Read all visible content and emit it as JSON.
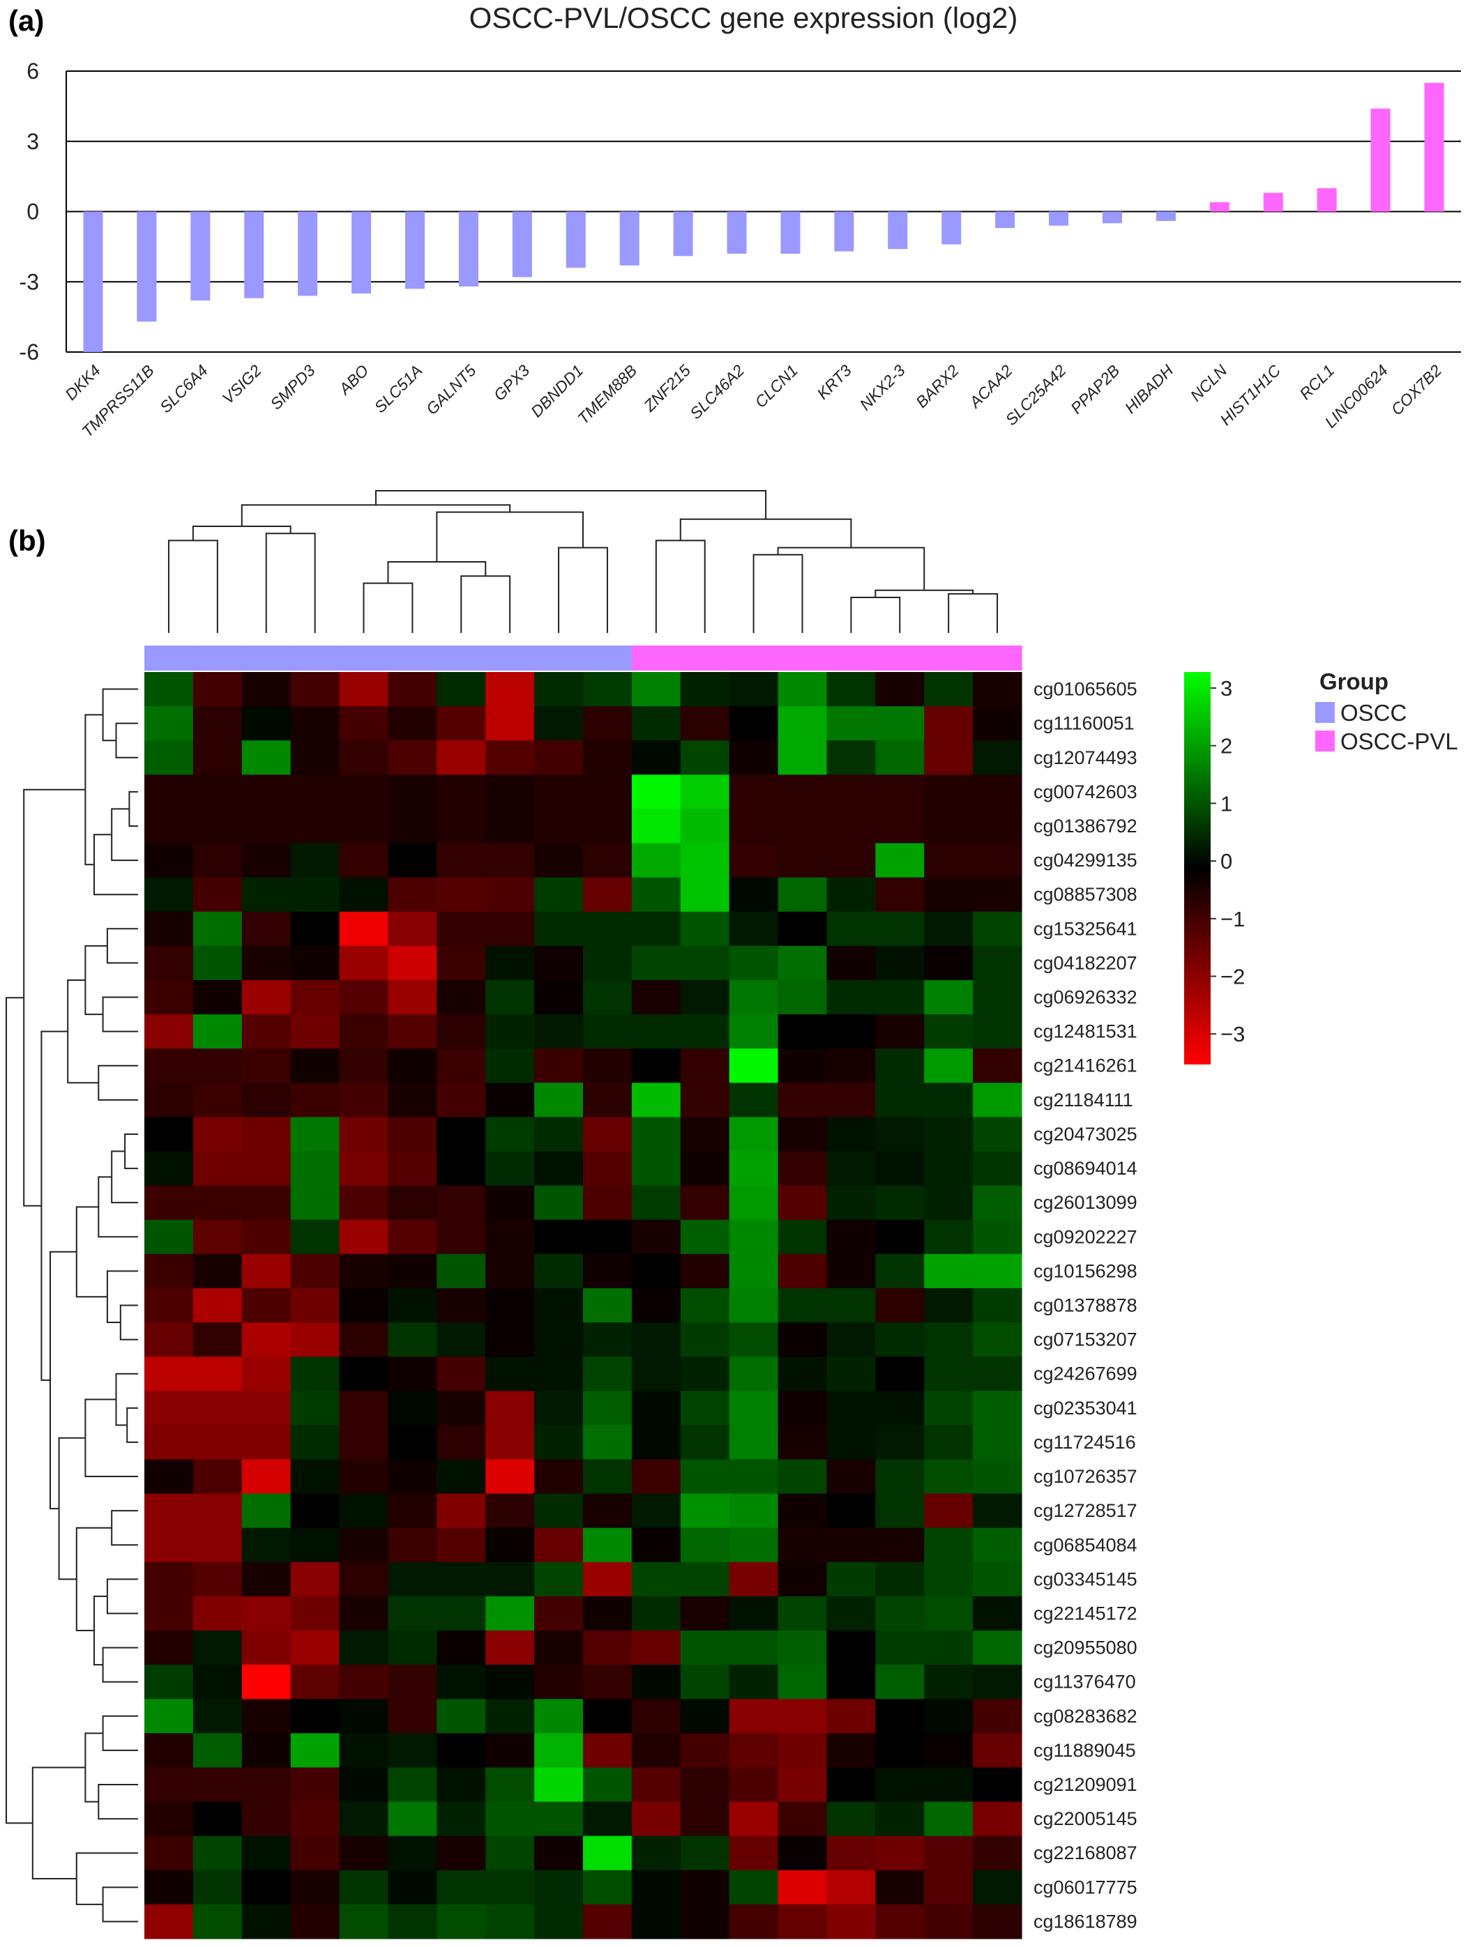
{
  "panels": {
    "a_label": "(a)",
    "b_label": "(b)"
  },
  "colors": {
    "decrease": "#9999ff",
    "increase": "#ff66ff",
    "heat_low": "#ff0000",
    "heat_mid": "#000000",
    "heat_high": "#00ff00"
  },
  "chart_data": [
    {
      "type": "bar",
      "title": "OSCC-PVL/OSCC gene expression (log2)",
      "ylim": [
        -6,
        6
      ],
      "yticks": [
        -6,
        -3,
        0,
        3,
        6
      ],
      "grid": true,
      "categories": [
        "DKK4",
        "TMPRSS11B",
        "SLC6A4",
        "VSIG2",
        "SMPD3",
        "ABO",
        "SLC51A",
        "GALNT5",
        "GPX3",
        "DBNDD1",
        "TMEM88B",
        "ZNF215",
        "SLC46A2",
        "CLCN1",
        "KRT3",
        "NKX2-3",
        "BARX2",
        "ACAA2",
        "SLC25A42",
        "PPAP2B",
        "HIBADH",
        "NCLN",
        "HIST1H1C",
        "RCL1",
        "LINC00624",
        "COX7B2"
      ],
      "values": [
        -6.0,
        -4.7,
        -3.8,
        -3.7,
        -3.6,
        -3.5,
        -3.3,
        -3.2,
        -2.8,
        -2.4,
        -2.3,
        -1.9,
        -1.8,
        -1.8,
        -1.7,
        -1.6,
        -1.4,
        -0.7,
        -0.6,
        -0.5,
        -0.4,
        0.4,
        0.8,
        1.0,
        4.4,
        5.5
      ]
    },
    {
      "type": "heatmap",
      "legend": {
        "title": "Group",
        "entries": [
          "OSCC",
          "OSCC-PVL"
        ]
      },
      "groups": [
        "OSCC",
        "OSCC",
        "OSCC",
        "OSCC",
        "OSCC",
        "OSCC",
        "OSCC",
        "OSCC",
        "OSCC",
        "OSCC",
        "OSCC-PVL",
        "OSCC-PVL",
        "OSCC-PVL",
        "OSCC-PVL",
        "OSCC-PVL",
        "OSCC-PVL",
        "OSCC-PVL",
        "OSCC-PVL"
      ],
      "colorbar": {
        "range": [
          -3,
          3
        ],
        "ticks": [
          "3",
          "2",
          "1",
          "0",
          "−1",
          "−2",
          "−3"
        ]
      },
      "rows": [
        "cg01065605",
        "cg11160051",
        "cg12074493",
        "cg00742603",
        "cg01386792",
        "cg04299135",
        "cg08857308",
        "cg15325641",
        "cg04182207",
        "cg06926332",
        "cg12481531",
        "cg21416261",
        "cg21184111",
        "cg20473025",
        "cg08694014",
        "cg26013099",
        "cg09202227",
        "cg10156298",
        "cg01378878",
        "cg07153207",
        "cg24267699",
        "cg02353041",
        "cg11724516",
        "cg10726357",
        "cg12728517",
        "cg06854084",
        "cg03345145",
        "cg22145172",
        "cg20955080",
        "cg11376470",
        "cg08283682",
        "cg11889045",
        "cg21209091",
        "cg22005145",
        "cg22168087",
        "cg06017775",
        "cg18618789"
      ],
      "values": [
        [
          1.0,
          -0.8,
          -0.3,
          -0.8,
          -1.8,
          -0.8,
          0.5,
          -2.2,
          0.5,
          0.7,
          1.5,
          0.4,
          0.3,
          1.6,
          0.6,
          -0.3,
          0.6,
          -0.3
        ],
        [
          1.3,
          -0.5,
          0.1,
          -0.3,
          -0.8,
          -0.4,
          -1.0,
          -2.2,
          0.3,
          -0.5,
          0.5,
          -0.5,
          0.0,
          2.0,
          1.4,
          1.4,
          -1.2,
          -0.2
        ],
        [
          1.1,
          -0.5,
          1.6,
          -0.3,
          -0.6,
          -0.9,
          -1.8,
          -1.0,
          -0.8,
          -0.4,
          0.1,
          0.8,
          -0.2,
          2.0,
          0.6,
          1.2,
          -1.2,
          0.3
        ],
        [
          -0.4,
          -0.4,
          -0.4,
          -0.4,
          -0.4,
          -0.3,
          -0.4,
          -0.3,
          -0.4,
          -0.4,
          2.9,
          2.4,
          -0.5,
          -0.5,
          -0.5,
          -0.5,
          -0.4,
          -0.4
        ],
        [
          -0.4,
          -0.4,
          -0.4,
          -0.4,
          -0.4,
          -0.3,
          -0.4,
          -0.3,
          -0.4,
          -0.4,
          2.7,
          2.2,
          -0.5,
          -0.5,
          -0.5,
          -0.5,
          -0.4,
          -0.4
        ],
        [
          -0.2,
          -0.5,
          -0.3,
          0.3,
          -0.6,
          0.0,
          -0.6,
          -0.6,
          -0.3,
          -0.5,
          2.0,
          2.3,
          -0.6,
          -0.5,
          -0.5,
          1.9,
          -0.5,
          -0.5
        ],
        [
          0.3,
          -0.8,
          0.4,
          0.4,
          0.2,
          -0.9,
          -1.0,
          -0.9,
          0.7,
          -1.2,
          1.0,
          2.3,
          0.1,
          1.2,
          0.4,
          -0.6,
          -0.3,
          -0.3
        ],
        [
          -0.3,
          1.3,
          -0.6,
          0.0,
          -2.8,
          -1.6,
          -0.6,
          -0.6,
          0.5,
          0.5,
          0.5,
          1.0,
          0.3,
          0.0,
          0.6,
          0.6,
          0.3,
          0.8
        ],
        [
          -0.6,
          1.0,
          -0.3,
          -0.2,
          -1.8,
          -2.4,
          -0.7,
          0.2,
          -0.2,
          0.5,
          0.8,
          0.8,
          1.0,
          1.3,
          -0.2,
          0.2,
          -0.1,
          0.6
        ],
        [
          -0.7,
          -0.2,
          -1.8,
          -1.2,
          -1.0,
          -1.8,
          -0.3,
          0.6,
          -0.1,
          0.6,
          -0.3,
          0.3,
          1.4,
          1.2,
          0.5,
          0.5,
          1.5,
          0.6
        ],
        [
          -1.6,
          1.6,
          -1.0,
          -1.3,
          -0.7,
          -1.0,
          -0.5,
          0.4,
          0.3,
          0.5,
          0.5,
          0.5,
          1.5,
          0.0,
          0.0,
          -0.3,
          0.7,
          0.6
        ],
        [
          -0.6,
          -0.6,
          -0.7,
          -0.2,
          -0.6,
          -0.2,
          -0.7,
          0.5,
          -0.7,
          -0.4,
          0.0,
          -0.6,
          2.9,
          -0.2,
          -0.3,
          0.5,
          1.8,
          -0.6
        ],
        [
          -0.5,
          -0.7,
          -0.5,
          -0.7,
          -0.8,
          -0.3,
          -0.8,
          -0.1,
          1.6,
          -0.5,
          2.2,
          -0.6,
          0.6,
          -0.6,
          -0.6,
          0.5,
          0.5,
          1.8
        ],
        [
          0.0,
          -1.4,
          -1.3,
          1.4,
          -1.3,
          -0.9,
          0.0,
          0.7,
          0.5,
          -1.2,
          1.0,
          -0.3,
          1.8,
          -0.3,
          0.2,
          0.3,
          0.4,
          0.8
        ],
        [
          0.2,
          -1.3,
          -1.3,
          1.3,
          -1.4,
          -1.0,
          0.0,
          0.5,
          0.2,
          -1.0,
          1.0,
          -0.2,
          1.9,
          -0.6,
          0.3,
          0.2,
          0.4,
          0.6
        ],
        [
          -0.7,
          -0.7,
          -0.7,
          1.3,
          -0.9,
          -0.5,
          -0.6,
          -0.2,
          1.0,
          -0.9,
          0.7,
          -0.6,
          1.8,
          -1.0,
          0.4,
          0.5,
          0.4,
          1.1
        ],
        [
          1.0,
          -1.1,
          -0.9,
          0.6,
          -1.8,
          -1.0,
          -0.6,
          -0.3,
          0.0,
          0.0,
          -0.3,
          1.1,
          1.6,
          0.6,
          -0.2,
          0.0,
          0.6,
          1.0
        ],
        [
          -0.7,
          -0.3,
          -1.8,
          -0.9,
          -0.3,
          -0.2,
          1.0,
          -0.3,
          0.5,
          -0.2,
          0.0,
          -0.4,
          1.6,
          -0.9,
          -0.2,
          0.6,
          1.9,
          1.9
        ],
        [
          -0.9,
          -2.0,
          -0.9,
          -1.3,
          -0.1,
          0.2,
          -0.3,
          -0.1,
          0.2,
          1.3,
          -0.1,
          0.9,
          1.5,
          0.6,
          0.6,
          -0.5,
          0.3,
          0.7
        ],
        [
          -1.2,
          -0.6,
          -2.0,
          -1.8,
          -0.5,
          0.6,
          0.3,
          -0.1,
          0.2,
          0.4,
          0.3,
          0.7,
          0.9,
          -0.1,
          0.3,
          0.5,
          0.6,
          0.9
        ],
        [
          -2.2,
          -2.2,
          -1.8,
          0.6,
          0.0,
          -0.2,
          -0.8,
          0.2,
          0.2,
          0.8,
          0.3,
          0.4,
          1.3,
          0.2,
          0.4,
          0.0,
          0.6,
          0.6
        ],
        [
          -1.6,
          -1.6,
          -1.6,
          0.7,
          -0.6,
          0.1,
          -0.3,
          -1.6,
          0.3,
          1.1,
          0.1,
          0.8,
          1.5,
          -0.2,
          0.2,
          0.2,
          0.8,
          1.1
        ],
        [
          -1.5,
          -1.5,
          -1.5,
          0.5,
          -0.6,
          0.0,
          -0.5,
          -1.6,
          0.4,
          1.3,
          0.1,
          0.6,
          1.5,
          -0.3,
          0.2,
          0.3,
          0.6,
          1.1
        ],
        [
          -0.2,
          -0.9,
          -2.5,
          0.2,
          -0.4,
          -0.2,
          0.2,
          -2.6,
          -0.4,
          0.6,
          -0.7,
          1.0,
          1.0,
          0.8,
          -0.3,
          0.6,
          0.9,
          1.0
        ],
        [
          -1.6,
          -1.6,
          1.3,
          0.0,
          0.2,
          -0.4,
          -1.5,
          -0.5,
          0.5,
          -0.3,
          0.3,
          1.7,
          1.6,
          -0.2,
          0.0,
          0.6,
          -1.2,
          0.3
        ],
        [
          -1.6,
          -1.6,
          0.3,
          0.2,
          -0.3,
          -0.7,
          -1.0,
          -0.1,
          -1.2,
          1.6,
          -0.1,
          1.2,
          1.3,
          -0.3,
          -0.3,
          -0.3,
          0.8,
          1.1
        ],
        [
          -0.8,
          -1.0,
          -0.3,
          -1.6,
          -0.5,
          0.3,
          0.3,
          0.3,
          0.8,
          -1.8,
          0.8,
          0.8,
          -1.4,
          -0.2,
          0.7,
          0.5,
          0.8,
          1.0
        ],
        [
          -0.8,
          -1.5,
          -1.6,
          -1.3,
          -0.3,
          0.6,
          0.6,
          1.7,
          -0.8,
          -0.2,
          0.5,
          -0.3,
          0.2,
          0.8,
          0.4,
          0.8,
          0.9,
          0.2
        ],
        [
          -0.4,
          0.3,
          -1.5,
          -1.8,
          0.3,
          0.5,
          -0.1,
          -1.6,
          -0.3,
          -1.0,
          -1.2,
          1.0,
          1.0,
          1.1,
          0.0,
          0.7,
          0.7,
          1.2
        ],
        [
          0.7,
          0.2,
          -3.0,
          -1.1,
          -0.8,
          -0.6,
          0.2,
          0.1,
          -0.4,
          -0.6,
          0.1,
          0.8,
          0.4,
          1.2,
          0.0,
          1.1,
          0.4,
          0.3
        ],
        [
          1.6,
          0.3,
          -0.3,
          0.0,
          0.1,
          -0.6,
          1.0,
          0.4,
          1.6,
          0.0,
          -0.5,
          0.1,
          -1.6,
          -1.6,
          -1.3,
          0.0,
          0.1,
          -0.8
        ],
        [
          -0.4,
          1.1,
          -0.2,
          1.9,
          0.2,
          0.3,
          0.0,
          -0.2,
          2.1,
          -1.3,
          -0.4,
          -0.8,
          -1.1,
          -1.3,
          -0.3,
          0.0,
          -0.1,
          -1.2
        ],
        [
          -0.6,
          -0.6,
          -0.6,
          -0.8,
          0.1,
          0.8,
          0.2,
          0.9,
          2.5,
          1.0,
          -1.0,
          -0.5,
          -0.9,
          -1.4,
          0.0,
          0.2,
          0.2,
          0.0
        ],
        [
          -0.4,
          0.0,
          -0.6,
          -0.9,
          0.3,
          1.4,
          0.4,
          1.0,
          1.0,
          0.3,
          -1.4,
          -0.5,
          -1.8,
          -0.7,
          0.6,
          0.4,
          1.2,
          -1.4
        ],
        [
          -0.7,
          0.8,
          0.2,
          -0.8,
          -0.3,
          0.2,
          -0.3,
          0.8,
          -0.2,
          2.6,
          0.4,
          0.6,
          -1.2,
          -0.1,
          -1.2,
          -1.3,
          -1.0,
          -0.6
        ],
        [
          -0.2,
          0.6,
          0.0,
          -0.3,
          0.6,
          0.1,
          0.6,
          0.6,
          0.5,
          0.9,
          0.1,
          -0.2,
          0.8,
          -2.6,
          -2.1,
          -0.3,
          -1.0,
          0.3
        ],
        [
          -1.7,
          0.9,
          0.2,
          -0.4,
          0.9,
          0.6,
          0.9,
          0.8,
          0.5,
          -1.0,
          0.1,
          -0.2,
          -0.8,
          -1.2,
          -1.5,
          -1.0,
          -0.8,
          -0.5
        ]
      ]
    }
  ]
}
